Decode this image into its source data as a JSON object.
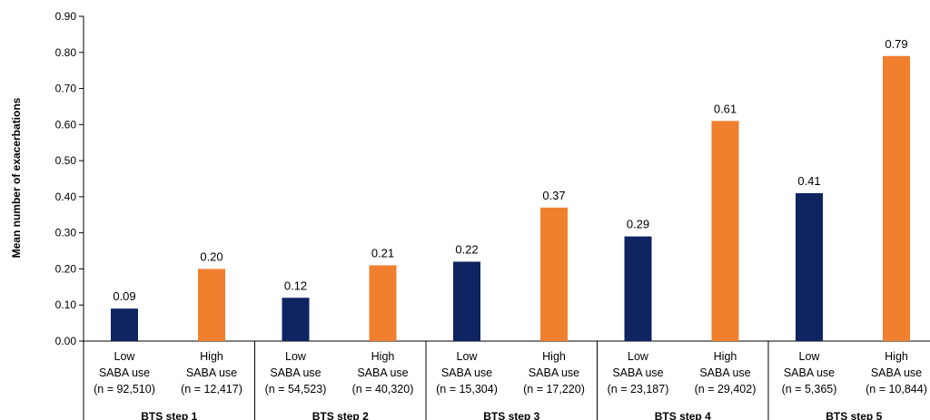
{
  "chart_data": {
    "type": "bar",
    "ylabel": "Mean number of exacerbations",
    "ylim": [
      0,
      0.9
    ],
    "yticks": [
      "0.00",
      "0.10",
      "0.20",
      "0.30",
      "0.40",
      "0.50",
      "0.60",
      "0.70",
      "0.80",
      "0.90"
    ],
    "grid": false,
    "colors": {
      "low": "#0f2461",
      "high": "#f07f2e"
    },
    "groups": [
      {
        "label": "BTS step 1",
        "bars": [
          {
            "line1": "Low",
            "line2": "SABA use",
            "n": "(n = 92,510)",
            "value": 0.09,
            "label": "0.09",
            "use": "low"
          },
          {
            "line1": "High",
            "line2": "SABA use",
            "n": "(n = 12,417)",
            "value": 0.2,
            "label": "0.20",
            "use": "high"
          }
        ]
      },
      {
        "label": "BTS step 2",
        "bars": [
          {
            "line1": "Low",
            "line2": "SABA use",
            "n": "(n = 54,523)",
            "value": 0.12,
            "label": "0.12",
            "use": "low"
          },
          {
            "line1": "High",
            "line2": "SABA use",
            "n": "(n = 40,320)",
            "value": 0.21,
            "label": "0.21",
            "use": "high"
          }
        ]
      },
      {
        "label": "BTS step 3",
        "bars": [
          {
            "line1": "Low",
            "line2": "SABA use",
            "n": "(n = 15,304)",
            "value": 0.22,
            "label": "0.22",
            "use": "low"
          },
          {
            "line1": "High",
            "line2": "SABA use",
            "n": "(n = 17,220)",
            "value": 0.37,
            "label": "0.37",
            "use": "high"
          }
        ]
      },
      {
        "label": "BTS step 4",
        "bars": [
          {
            "line1": "Low",
            "line2": "SABA use",
            "n": "(n = 23,187)",
            "value": 0.29,
            "label": "0.29",
            "use": "low"
          },
          {
            "line1": "High",
            "line2": "SABA use",
            "n": "(n = 29,402)",
            "value": 0.61,
            "label": "0.61",
            "use": "high"
          }
        ]
      },
      {
        "label": "BTS step 5",
        "bars": [
          {
            "line1": "Low",
            "line2": "SABA use",
            "n": "(n = 5,365)",
            "value": 0.41,
            "label": "0.41",
            "use": "low"
          },
          {
            "line1": "High",
            "line2": "SABA use",
            "n": "(n = 10,844)",
            "value": 0.79,
            "label": "0.79",
            "use": "high"
          }
        ]
      }
    ]
  }
}
